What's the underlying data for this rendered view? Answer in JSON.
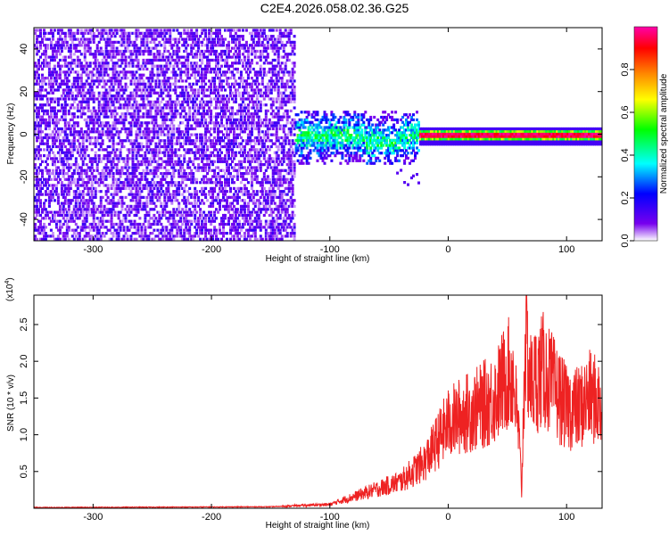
{
  "title": "C2E4.2026.058.02.36.G25",
  "chart_data": [
    {
      "type": "heatmap",
      "name": "spectrogram",
      "xlabel": "Height of straight line (km)",
      "ylabel": "Frequency (Hz)",
      "xlim": [
        -350,
        130
      ],
      "ylim": [
        -50,
        50
      ],
      "xticks": [
        -300,
        -200,
        -100,
        0,
        100
      ],
      "yticks": [
        -40,
        -20,
        0,
        20,
        40
      ],
      "description_regions": [
        {
          "x_from": -350,
          "x_to": -130,
          "behaviour": "broadband noise across all frequencies, low amplitude (~0.1-0.2)"
        },
        {
          "x_from": -130,
          "x_to": -25,
          "behaviour": "energy concentrated around 0 Hz, spread about +/-10 Hz, amplitude ~0.2-0.5"
        },
        {
          "x_from": -25,
          "x_to": 130,
          "behaviour": "narrow band at 0 Hz with high amplitude (~0.9-1.0)"
        }
      ],
      "colorbar": {
        "label": "Normalized spectral amplitude",
        "range": [
          0.0,
          1.0
        ],
        "ticks": [
          0.0,
          0.2,
          0.4,
          0.6,
          0.8
        ],
        "tick_labels": [
          "0.0",
          "0.2",
          "0.4",
          "0.6",
          "0.8"
        ],
        "colors": [
          "#ffffff",
          "#7700ee",
          "#0000ff",
          "#00ffff",
          "#00ff00",
          "#ffff00",
          "#ff8800",
          "#ff0000",
          "#ff00aa"
        ]
      }
    },
    {
      "type": "line",
      "name": "snr",
      "xlabel": "Height of straight line (km)",
      "ylabel": "SNR (10 * v/v)",
      "scale_label": "(x10",
      "scale_exp": "4",
      "scale_close": ")",
      "xlim": [
        -350,
        130
      ],
      "ylim": [
        0,
        2.9
      ],
      "xticks": [
        -300,
        -200,
        -100,
        0,
        100
      ],
      "yticks": [
        0.5,
        1.0,
        1.5,
        2.0,
        2.5
      ],
      "ytick_labels": [
        "0.5",
        "1.0",
        "1.5",
        "2.0",
        "2.5"
      ],
      "color": "#ee2222",
      "x": [
        -350,
        -150,
        -100,
        -80,
        -60,
        -40,
        -20,
        0,
        10,
        25,
        40,
        50,
        55,
        60,
        62,
        65,
        70,
        80,
        90,
        100,
        110,
        120,
        130
      ],
      "y": [
        0.01,
        0.02,
        0.05,
        0.15,
        0.25,
        0.35,
        0.6,
        1.1,
        1.2,
        1.3,
        1.45,
        1.75,
        1.7,
        0.9,
        0.2,
        2.2,
        1.6,
        1.8,
        1.55,
        1.3,
        1.3,
        1.45,
        1.35
      ]
    }
  ]
}
